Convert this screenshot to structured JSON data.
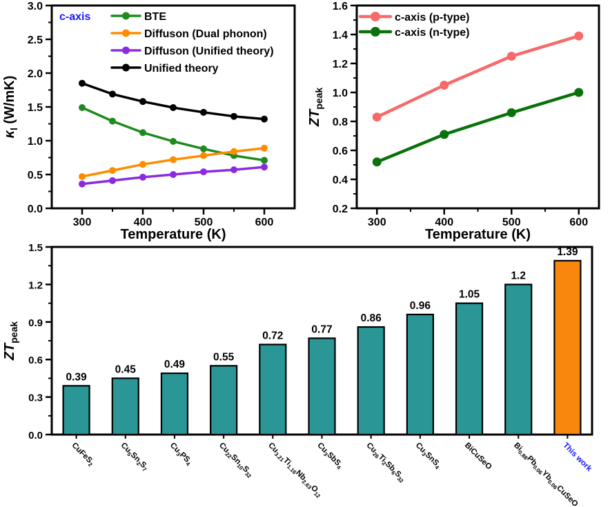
{
  "figure": {
    "background": "#ffffff",
    "text_color": "#000000",
    "accent_blue": "#1717ff"
  },
  "chart_data": [
    {
      "id": "kappa-vs-temperature",
      "type": "line",
      "panel": "top-left",
      "annotation": {
        "text": "c-axis",
        "color": "#1717ff"
      },
      "xlabel": "Temperature (K)",
      "ylabel": "*κ*_{l} (W/mK)",
      "x": [
        300,
        350,
        400,
        450,
        500,
        550,
        600
      ],
      "xlim": [
        250,
        650
      ],
      "xticks": {
        "values": [
          300,
          400,
          500,
          600
        ],
        "labels": [
          "300",
          "400",
          "500",
          "600"
        ],
        "minor": [
          350,
          450,
          550
        ]
      },
      "ylim": [
        0,
        3.0
      ],
      "yticks": {
        "values": [
          0.0,
          0.5,
          1.0,
          1.5,
          2.0,
          2.5,
          3.0
        ],
        "labels": [
          "0.0",
          "0.5",
          "1.0",
          "1.5",
          "2.0",
          "2.5",
          "3.0"
        ],
        "minor": [
          0.25,
          0.75,
          1.25,
          1.75,
          2.25,
          2.75
        ]
      },
      "legend_position": "top-inside",
      "grid": false,
      "series": [
        {
          "name": "BTE",
          "color": "#1f8a1f",
          "values": [
            1.49,
            1.29,
            1.12,
            0.99,
            0.88,
            0.78,
            0.71
          ]
        },
        {
          "name": "Diffuson (Dual phonon)",
          "color": "#ff8c00",
          "values": [
            0.47,
            0.56,
            0.65,
            0.72,
            0.78,
            0.84,
            0.89
          ]
        },
        {
          "name": "Diffuson (Unified theory)",
          "color": "#8a2be2",
          "values": [
            0.36,
            0.41,
            0.46,
            0.5,
            0.54,
            0.57,
            0.61
          ]
        },
        {
          "name": "Unified theory",
          "color": "#000000",
          "values": [
            1.85,
            1.69,
            1.58,
            1.49,
            1.42,
            1.36,
            1.32
          ]
        }
      ]
    },
    {
      "id": "zt-peak-vs-temperature",
      "type": "line",
      "panel": "top-right",
      "xlabel": "Temperature (K)",
      "ylabel": "*ZT*_{peak}",
      "x": [
        300,
        400,
        500,
        600
      ],
      "xlim": [
        270,
        630
      ],
      "xticks": {
        "values": [
          300,
          400,
          500,
          600
        ],
        "labels": [
          "300",
          "400",
          "500",
          "600"
        ],
        "minor": [
          350,
          450,
          550
        ]
      },
      "ylim": [
        0.2,
        1.6
      ],
      "yticks": {
        "values": [
          0.2,
          0.4,
          0.6,
          0.8,
          1.0,
          1.2,
          1.4,
          1.6
        ],
        "labels": [
          "0.2",
          "0.4",
          "0.6",
          "0.8",
          "1.0",
          "1.2",
          "1.4",
          "1.6"
        ],
        "minor": [
          0.3,
          0.5,
          0.7,
          0.9,
          1.1,
          1.3,
          1.5
        ]
      },
      "legend_position": "top-inside",
      "grid": false,
      "series": [
        {
          "name": "c-axis (p-type)",
          "color": "#f86a6a",
          "values": [
            0.83,
            1.05,
            1.25,
            1.39
          ]
        },
        {
          "name": "c-axis (n-type)",
          "color": "#0a720a",
          "values": [
            0.52,
            0.71,
            0.86,
            1.0
          ]
        }
      ]
    },
    {
      "id": "zt-peak-materials-comparison",
      "type": "bar",
      "panel": "bottom",
      "xlabel": "",
      "ylabel": "*ZT*_{peak}",
      "categories": [
        "CuFeS_{2}",
        "Cu_{5}Sn_{2}S_{7}",
        "Cu_{3}PS_{4}",
        "Cu_{22}Sn_{10}S_{32}",
        "Cu_{3.21}Ti_{1.16}Nb_{2.63}O_{12}",
        "Cu_{3}SbS_{4}",
        "Cu_{26}Ti_{2}Sb_{6}S_{32}",
        "Cu_{3}SnS_{4}",
        "BiCuSeO",
        "Bi_{0.88}Pb_{0.06}Yb_{0.06}CuSeO",
        "This work"
      ],
      "values": [
        0.39,
        0.45,
        0.49,
        0.55,
        0.72,
        0.77,
        0.86,
        0.96,
        1.05,
        1.2,
        1.39
      ],
      "value_labels": [
        "0.39",
        "0.45",
        "0.49",
        "0.55",
        "0.72",
        "0.77",
        "0.86",
        "0.96",
        "1.05",
        "1.2",
        "1.39"
      ],
      "ylim": [
        0,
        1.5
      ],
      "yticks": {
        "values": [
          0.0,
          0.3,
          0.6,
          0.9,
          1.2,
          1.5
        ],
        "labels": [
          "0.0",
          "0.3",
          "0.6",
          "0.9",
          "1.2",
          "1.5"
        ],
        "minor": [
          0.15,
          0.45,
          0.75,
          1.05,
          1.35
        ]
      },
      "bar_color": "#2a9696",
      "bar_edge_color": "#000000",
      "grid": false,
      "highlight": {
        "index": 10,
        "bar_color": "#f8870d",
        "label_color": "#1717ff"
      }
    }
  ]
}
